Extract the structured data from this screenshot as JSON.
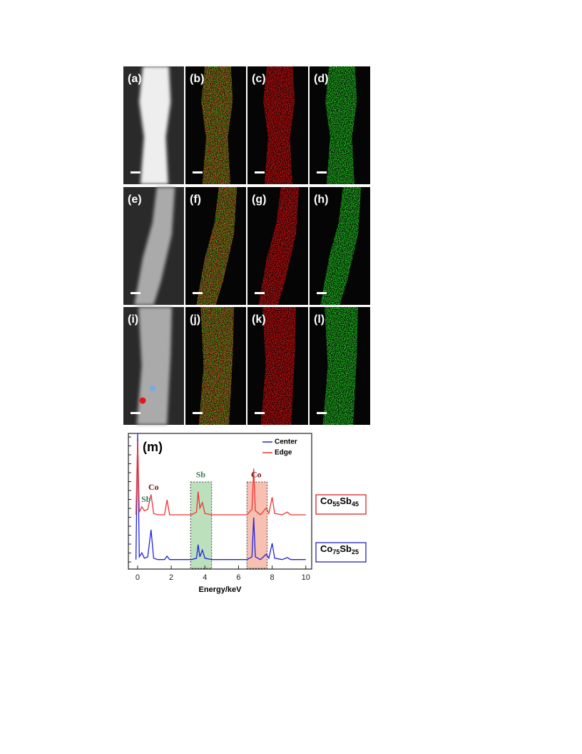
{
  "panels": [
    "(a)",
    "(b)",
    "(c)",
    "(d)",
    "(e)",
    "(f)",
    "(g)",
    "(h)",
    "(i)",
    "(j)",
    "(k)",
    "(l)"
  ],
  "chart_data": {
    "type": "line",
    "title": "(m)",
    "x_label": "Energy/keV",
    "x": [
      -0.1,
      0,
      0.1,
      0.25,
      0.4,
      0.6,
      0.8,
      0.95,
      1.2,
      1.6,
      1.75,
      1.9,
      2.5,
      3.2,
      3.5,
      3.6,
      3.7,
      3.85,
      4.0,
      4.4,
      5.5,
      6.5,
      6.8,
      6.9,
      7.0,
      7.3,
      7.65,
      7.8,
      8.0,
      8.15,
      8.6,
      8.9,
      9.1,
      10.0
    ],
    "series": [
      {
        "name": "Center",
        "color": "#2222dd",
        "values": [
          7,
          100,
          9,
          12,
          8,
          9,
          29,
          8,
          7,
          7,
          9.5,
          7,
          7,
          7,
          8,
          18,
          9,
          14,
          8,
          7,
          7,
          7,
          9,
          38,
          9,
          7,
          11,
          8,
          19,
          8,
          7,
          8.5,
          7,
          7
        ]
      },
      {
        "name": "Edge",
        "color": "#ee3333",
        "values": [
          40,
          94,
          42,
          46,
          43,
          44,
          55,
          41,
          40,
          40,
          51,
          40,
          40,
          40,
          42,
          57,
          45,
          49,
          41,
          40,
          40,
          40,
          44,
          74,
          43,
          40,
          45,
          41,
          53,
          41,
          40,
          42,
          40,
          40
        ]
      }
    ],
    "xlim": [
      -0.55,
      10.35
    ],
    "xticks": [
      0,
      2,
      4,
      6,
      8,
      10
    ],
    "ylim": [
      0,
      100
    ],
    "highlights": [
      {
        "x": [
          3.15,
          4.4
        ],
        "color": "#9fd29f"
      },
      {
        "x": [
          6.5,
          7.7
        ],
        "color": "#f4a58f"
      }
    ],
    "annotations": [
      {
        "text": "Co",
        "x": 0.95,
        "y": 60,
        "color": "#7a1010"
      },
      {
        "text": "Sb",
        "x": 0.5,
        "y": 51,
        "color": "#3a7a5a"
      },
      {
        "text": "Sb",
        "x": 3.75,
        "y": 69,
        "color": "#3a7a5a"
      },
      {
        "text": "Co",
        "x": 7.05,
        "y": 69,
        "color": "#7a1010"
      }
    ],
    "compositions": [
      {
        "parts": [
          "Co",
          "55",
          "Sb",
          "45"
        ],
        "color": "#dd2222"
      },
      {
        "parts": [
          "Co",
          "75",
          "Sb",
          "25"
        ],
        "color": "#2222bb"
      }
    ]
  }
}
